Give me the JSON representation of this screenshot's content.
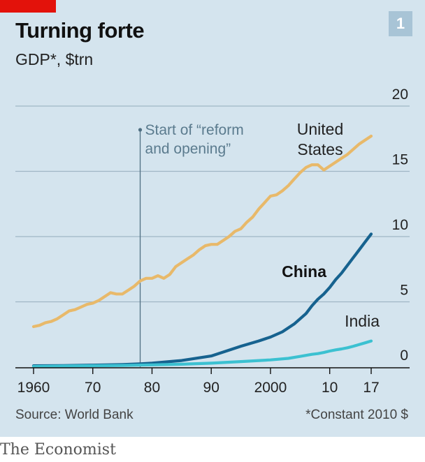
{
  "header": {
    "title": "Turning forte",
    "subtitle": "GDP*, $trn",
    "chart_number": "1"
  },
  "footer": {
    "source": "Source: World Bank",
    "footnote": "*Constant 2010 $",
    "brand": "The Economist"
  },
  "colors": {
    "us": "#e8b96a",
    "china": "#16628f",
    "india": "#3cc1d1",
    "background": "#d4e4ee",
    "brand_red": "#e3120b"
  },
  "chart_data": {
    "type": "line",
    "title": "Turning forte",
    "subtitle": "GDP*, $trn",
    "xlim": [
      1960,
      2017
    ],
    "ylim": [
      0,
      20
    ],
    "x_ticks": [
      1960,
      1970,
      1980,
      1990,
      2000,
      2010,
      2017
    ],
    "x_tick_labels": [
      "1960",
      "70",
      "80",
      "90",
      "2000",
      "10",
      "17"
    ],
    "y_ticks": [
      0,
      5,
      10,
      15,
      20
    ],
    "y_tick_labels": [
      "0",
      "5",
      "10",
      "15",
      "20"
    ],
    "grid": "horizontal",
    "annotation": {
      "x": 1978,
      "lines": [
        "Start of “reform",
        "and opening”"
      ]
    },
    "series": [
      {
        "name": "United States",
        "label_lines": [
          "United",
          "States"
        ],
        "color": "#e8b96a",
        "points": [
          [
            1960,
            3.1
          ],
          [
            1961,
            3.2
          ],
          [
            1962,
            3.4
          ],
          [
            1963,
            3.5
          ],
          [
            1964,
            3.7
          ],
          [
            1965,
            4.0
          ],
          [
            1966,
            4.3
          ],
          [
            1967,
            4.4
          ],
          [
            1968,
            4.6
          ],
          [
            1969,
            4.8
          ],
          [
            1970,
            4.9
          ],
          [
            1971,
            5.1
          ],
          [
            1972,
            5.4
          ],
          [
            1973,
            5.7
          ],
          [
            1974,
            5.6
          ],
          [
            1975,
            5.6
          ],
          [
            1976,
            5.9
          ],
          [
            1977,
            6.2
          ],
          [
            1978,
            6.6
          ],
          [
            1979,
            6.8
          ],
          [
            1980,
            6.8
          ],
          [
            1981,
            7.0
          ],
          [
            1982,
            6.8
          ],
          [
            1983,
            7.1
          ],
          [
            1984,
            7.7
          ],
          [
            1985,
            8.0
          ],
          [
            1986,
            8.3
          ],
          [
            1987,
            8.6
          ],
          [
            1988,
            9.0
          ],
          [
            1989,
            9.3
          ],
          [
            1990,
            9.4
          ],
          [
            1991,
            9.4
          ],
          [
            1992,
            9.7
          ],
          [
            1993,
            10.0
          ],
          [
            1994,
            10.4
          ],
          [
            1995,
            10.6
          ],
          [
            1996,
            11.1
          ],
          [
            1997,
            11.5
          ],
          [
            1998,
            12.1
          ],
          [
            1999,
            12.6
          ],
          [
            2000,
            13.1
          ],
          [
            2001,
            13.2
          ],
          [
            2002,
            13.5
          ],
          [
            2003,
            13.9
          ],
          [
            2004,
            14.4
          ],
          [
            2005,
            14.9
          ],
          [
            2006,
            15.3
          ],
          [
            2007,
            15.5
          ],
          [
            2008,
            15.5
          ],
          [
            2009,
            15.1
          ],
          [
            2010,
            15.4
          ],
          [
            2011,
            15.7
          ],
          [
            2012,
            16.0
          ],
          [
            2013,
            16.3
          ],
          [
            2014,
            16.7
          ],
          [
            2015,
            17.1
          ],
          [
            2016,
            17.4
          ],
          [
            2017,
            17.7
          ]
        ]
      },
      {
        "name": "China",
        "label_lines": [
          "China"
        ],
        "color": "#16628f",
        "points": [
          [
            1960,
            0.1
          ],
          [
            1965,
            0.12
          ],
          [
            1970,
            0.15
          ],
          [
            1975,
            0.2
          ],
          [
            1978,
            0.25
          ],
          [
            1980,
            0.3
          ],
          [
            1985,
            0.5
          ],
          [
            1990,
            0.85
          ],
          [
            1993,
            1.3
          ],
          [
            1995,
            1.6
          ],
          [
            1998,
            2.0
          ],
          [
            2000,
            2.3
          ],
          [
            2002,
            2.7
          ],
          [
            2004,
            3.3
          ],
          [
            2006,
            4.1
          ],
          [
            2007,
            4.7
          ],
          [
            2008,
            5.2
          ],
          [
            2009,
            5.6
          ],
          [
            2010,
            6.1
          ],
          [
            2011,
            6.7
          ],
          [
            2012,
            7.2
          ],
          [
            2013,
            7.8
          ],
          [
            2014,
            8.4
          ],
          [
            2015,
            9.0
          ],
          [
            2016,
            9.6
          ],
          [
            2017,
            10.2
          ]
        ]
      },
      {
        "name": "India",
        "label_lines": [
          "India"
        ],
        "color": "#3cc1d1",
        "points": [
          [
            1960,
            0.05
          ],
          [
            1965,
            0.08
          ],
          [
            1970,
            0.1
          ],
          [
            1975,
            0.13
          ],
          [
            1980,
            0.17
          ],
          [
            1985,
            0.22
          ],
          [
            1990,
            0.3
          ],
          [
            1995,
            0.42
          ],
          [
            2000,
            0.55
          ],
          [
            2003,
            0.67
          ],
          [
            2005,
            0.82
          ],
          [
            2007,
            0.98
          ],
          [
            2008,
            1.03
          ],
          [
            2009,
            1.12
          ],
          [
            2010,
            1.23
          ],
          [
            2011,
            1.32
          ],
          [
            2012,
            1.39
          ],
          [
            2013,
            1.48
          ],
          [
            2014,
            1.6
          ],
          [
            2015,
            1.73
          ],
          [
            2016,
            1.86
          ],
          [
            2017,
            2.0
          ]
        ]
      }
    ]
  }
}
